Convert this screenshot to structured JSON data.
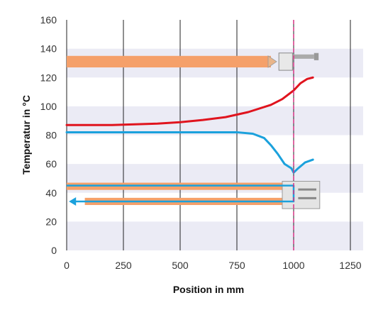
{
  "chart_data": {
    "type": "line",
    "title": "",
    "xlabel": "Position in mm",
    "ylabel": "Temperatur in °C",
    "xlim": [
      0,
      1250
    ],
    "ylim": [
      0,
      160
    ],
    "xticks": [
      0,
      250,
      500,
      750,
      1000,
      1250
    ],
    "yticks": [
      0,
      20,
      40,
      60,
      80,
      100,
      120,
      140,
      160
    ],
    "grid": "vertical lines at x ticks; alternating horizontal bands",
    "reference_line": {
      "x": 1000,
      "style": "dashed",
      "color": "#d63384"
    },
    "series": [
      {
        "color": "#e0141e",
        "x": [
          0,
          100,
          200,
          300,
          400,
          500,
          600,
          700,
          800,
          900,
          950,
          1000,
          1030,
          1060,
          1085
        ],
        "y": [
          87,
          87,
          87,
          87.5,
          88,
          89,
          90.5,
          92.5,
          96,
          101,
          105,
          111,
          116,
          119,
          120
        ]
      },
      {
        "color": "#1ba1dc",
        "x": [
          0,
          200,
          400,
          600,
          750,
          820,
          870,
          900,
          930,
          960,
          990,
          1000,
          1020,
          1050,
          1085
        ],
        "y": [
          82,
          82,
          82,
          82,
          82,
          81,
          78,
          73,
          67,
          60,
          57,
          54,
          57,
          61,
          63
        ]
      }
    ],
    "illustrations": {
      "upper_bar": {
        "color": "#f5a06a",
        "x": [
          0,
          900
        ],
        "y": [
          127,
          135
        ]
      },
      "lower_bars": {
        "color": "#f5a06a",
        "bar1_x": [
          0,
          950
        ],
        "bar2_x": [
          80,
          950
        ]
      },
      "flow_arrow_color": "#1ba1dc"
    }
  }
}
